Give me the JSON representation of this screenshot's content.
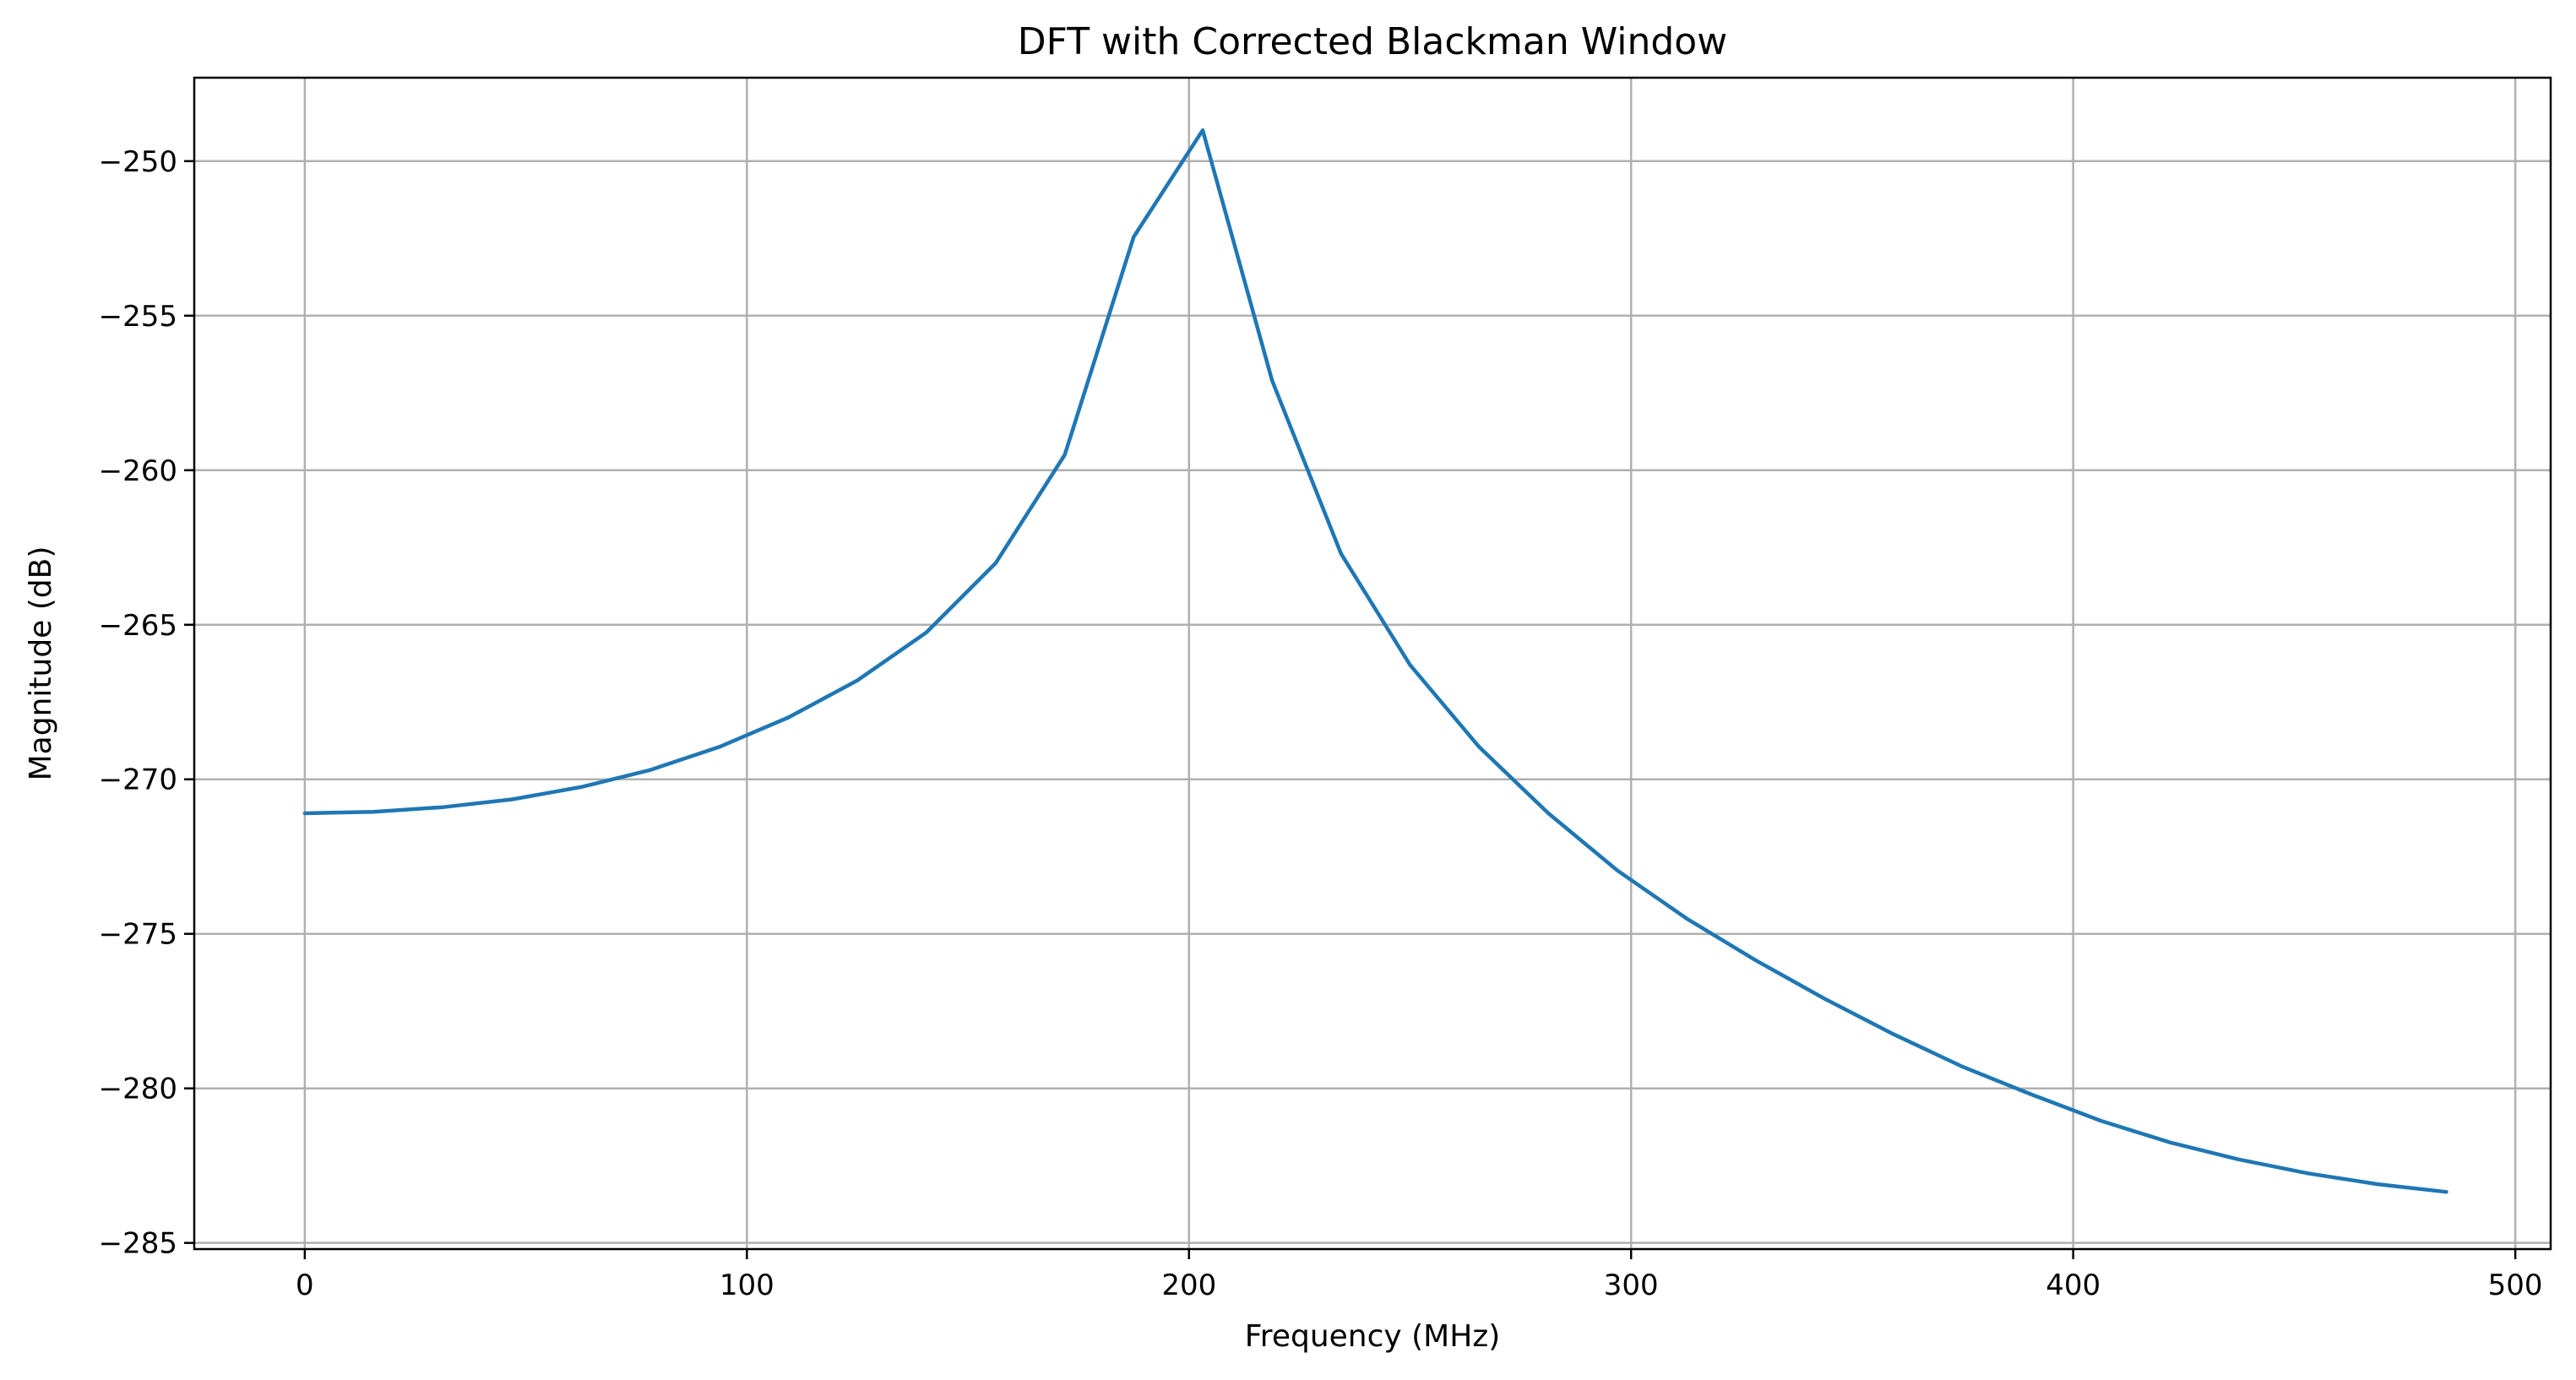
{
  "chart_data": {
    "type": "line",
    "title": "DFT with Corrected Blackman Window",
    "xlabel": "Frequency (MHz)",
    "ylabel": "Magnitude (dB)",
    "xlim": [
      -25,
      508
    ],
    "ylim": [
      -285.2,
      -247.3
    ],
    "xticks": [
      0,
      100,
      200,
      300,
      400,
      500
    ],
    "xtick_labels": [
      "0",
      "100",
      "200",
      "300",
      "400",
      "500"
    ],
    "yticks": [
      -250,
      -255,
      -260,
      -265,
      -270,
      -275,
      -280,
      -285
    ],
    "ytick_labels": [
      "−250",
      "−255",
      "−260",
      "−265",
      "−270",
      "−275",
      "−280",
      "−285"
    ],
    "grid": true,
    "series": [
      {
        "color": "#1f77b4",
        "x": [
          0,
          15.6,
          31.3,
          46.9,
          62.5,
          78.1,
          93.8,
          109.4,
          125.0,
          140.6,
          156.3,
          171.9,
          187.5,
          203.1,
          218.8,
          234.4,
          250.0,
          265.6,
          281.3,
          296.9,
          312.5,
          328.1,
          343.8,
          359.4,
          375.0,
          390.6,
          406.3,
          421.9,
          437.5,
          453.1,
          468.8,
          484.4
        ],
        "y": [
          -271.1,
          -271.05,
          -270.9,
          -270.65,
          -270.25,
          -269.7,
          -268.95,
          -268.0,
          -266.8,
          -265.25,
          -263.0,
          -259.5,
          -252.45,
          -249.0,
          -257.1,
          -262.7,
          -266.3,
          -268.95,
          -271.1,
          -272.95,
          -274.5,
          -275.85,
          -277.1,
          -278.25,
          -279.3,
          -280.2,
          -281.05,
          -281.75,
          -282.3,
          -282.75,
          -283.1,
          -283.35
        ]
      }
    ]
  }
}
